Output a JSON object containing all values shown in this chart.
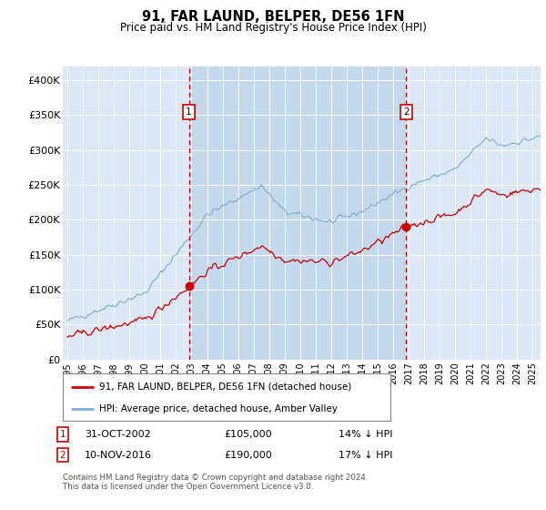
{
  "title": "91, FAR LAUND, BELPER, DE56 1FN",
  "subtitle": "Price paid vs. HM Land Registry's House Price Index (HPI)",
  "bg_color": "#dce8f5",
  "plot_bg_color": "#dce8f5",
  "highlight_color": "#c5d9ee",
  "red_label": "91, FAR LAUND, BELPER, DE56 1FN (detached house)",
  "blue_label": "HPI: Average price, detached house, Amber Valley",
  "annotation1_date": "31-OCT-2002",
  "annotation1_price": "£105,000",
  "annotation1_hpi": "14% ↓ HPI",
  "annotation2_date": "10-NOV-2016",
  "annotation2_price": "£190,000",
  "annotation2_hpi": "17% ↓ HPI",
  "footer": "Contains HM Land Registry data © Crown copyright and database right 2024.\nThis data is licensed under the Open Government Licence v3.0.",
  "ylim": [
    0,
    420000
  ],
  "yticks": [
    0,
    50000,
    100000,
    150000,
    200000,
    250000,
    300000,
    350000,
    400000
  ],
  "ytick_labels": [
    "£0",
    "£50K",
    "£100K",
    "£150K",
    "£200K",
    "£250K",
    "£300K",
    "£350K",
    "£400K"
  ],
  "vline1_year": 2002.83,
  "vline2_year": 2016.83,
  "dot1_x": 2002.83,
  "dot1_y": 105000,
  "dot2_x": 2016.83,
  "dot2_y": 190000,
  "red_color": "#cc0000",
  "blue_color": "#7bafd4",
  "dot_color": "#cc0000",
  "vline_color": "#cc0000",
  "xlim_start": 1994.7,
  "xlim_end": 2025.5
}
